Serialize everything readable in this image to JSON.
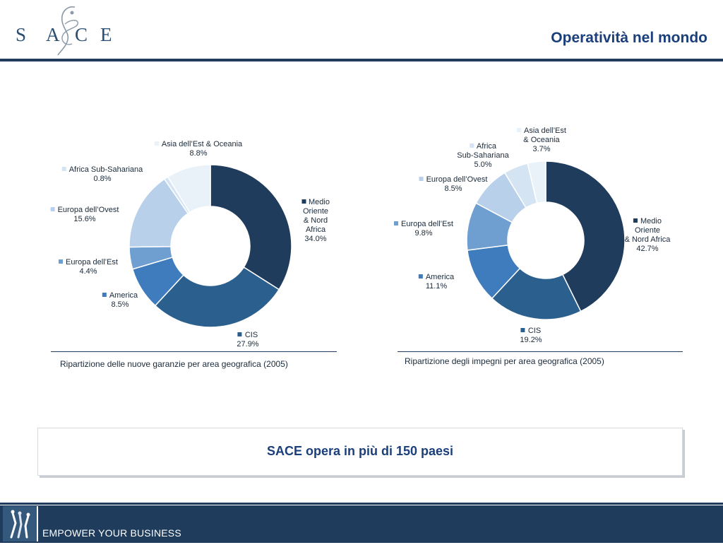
{
  "header": {
    "logo_letters": [
      "S",
      "A",
      "C",
      "E"
    ],
    "title": "Operatività nel mondo"
  },
  "colors": {
    "navy": "#1f3c5c",
    "title_blue": "#1a3f7a",
    "medio_oriente": "#1f3c5c",
    "cis": "#2b5f8e",
    "america": "#3f7cbd",
    "europa_est": "#6f9fd1",
    "europa_ovest": "#b8d0ea",
    "africa_sub": "#d5e4f3",
    "asia": "#e9f1f9"
  },
  "chart_data": [
    {
      "type": "pie",
      "donut": true,
      "caption": "Ripartizione delle nuove garanzie per area geografica (2005)",
      "slices": [
        {
          "label": "Medio Oriente\n& Nord Africa",
          "value": 34.0,
          "display": "34.0%",
          "color": "#1f3c5c"
        },
        {
          "label": "CIS",
          "value": 27.9,
          "display": "27.9%",
          "color": "#2b5f8e"
        },
        {
          "label": "America",
          "value": 8.5,
          "display": "8.5%",
          "color": "#3f7cbd"
        },
        {
          "label": "Europa dell’Est",
          "value": 4.4,
          "display": "4.4%",
          "color": "#6f9fd1"
        },
        {
          "label": "Europa dell’Ovest",
          "value": 15.6,
          "display": "15.6%",
          "color": "#b8d0ea"
        },
        {
          "label": "Africa Sub-Sahariana",
          "value": 0.8,
          "display": "0.8%",
          "color": "#d5e4f3"
        },
        {
          "label": "Asia dell’Est & Oceania",
          "value": 8.8,
          "display": "8.8%",
          "color": "#e9f1f9"
        }
      ]
    },
    {
      "type": "pie",
      "donut": true,
      "caption": "Ripartizione degli impegni per area geografica (2005)",
      "slices": [
        {
          "label": "Medio Oriente\n& Nord Africa",
          "value": 42.7,
          "display": "42.7%",
          "color": "#1f3c5c"
        },
        {
          "label": "CIS",
          "value": 19.2,
          "display": "19.2%",
          "color": "#2b5f8e"
        },
        {
          "label": "America",
          "value": 11.1,
          "display": "11.1%",
          "color": "#3f7cbd"
        },
        {
          "label": "Europa dell’Est",
          "value": 9.8,
          "display": "9.8%",
          "color": "#6f9fd1"
        },
        {
          "label": "Europa dell’Ovest",
          "value": 8.5,
          "display": "8.5%",
          "color": "#b8d0ea"
        },
        {
          "label": "Africa\nSub-Sahariana",
          "value": 5.0,
          "display": "5.0%",
          "color": "#d5e4f3"
        },
        {
          "label": "Asia dell’Est\n& Oceania",
          "value": 3.7,
          "display": "3.7%",
          "color": "#e9f1f9"
        }
      ]
    }
  ],
  "callout": {
    "text": "SACE opera in più di 150 paesi"
  },
  "footer": {
    "logo_icon": "sace-figures-icon",
    "tagline": "EMPOWER YOUR BUSINESS"
  }
}
